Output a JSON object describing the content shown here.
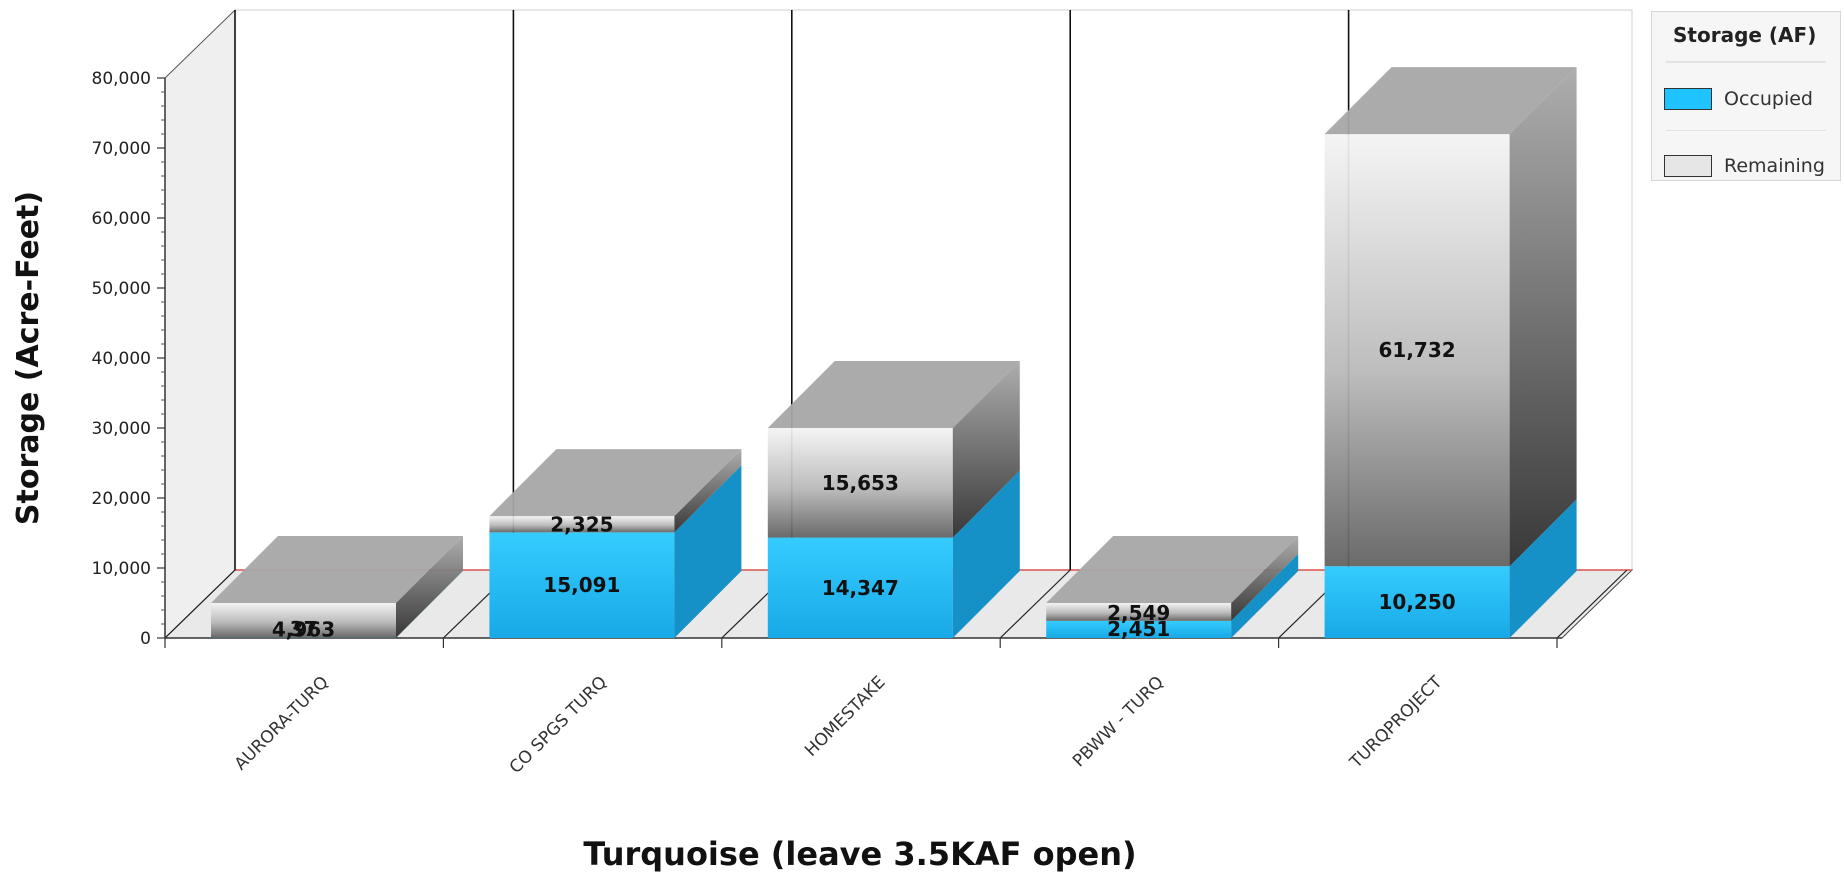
{
  "chart_data": {
    "type": "bar",
    "stacked": true,
    "three_d": true,
    "categories": [
      "AURORA-TURQ",
      "CO SPGS TURQ",
      "HOMESTAKE",
      "PBWW - TURQ",
      "TURQPROJECT"
    ],
    "series": [
      {
        "name": "Occupied",
        "values": [
          37,
          15091,
          14347,
          2451,
          10250
        ],
        "labels": [
          "37",
          "15,091",
          "14,347",
          "2,451",
          "10,250"
        ],
        "color": "#1ec3ff"
      },
      {
        "name": "Remaining",
        "values": [
          4963,
          2325,
          15653,
          2549,
          61732
        ],
        "labels": [
          "4,963",
          "2,325",
          "15,653",
          "2,549",
          "61,732"
        ],
        "color": "#e8e8e8"
      }
    ],
    "title": "",
    "xlabel": "Turquoise (leave 3.5KAF open)",
    "ylabel": "Storage (Acre-Feet)",
    "ylim": [
      0,
      80000
    ],
    "yticks": [
      0,
      10000,
      20000,
      30000,
      40000,
      50000,
      60000,
      70000,
      80000
    ],
    "ytick_labels": [
      "0",
      "10,000",
      "20,000",
      "30,000",
      "40,000",
      "50,000",
      "60,000",
      "70,000",
      "80,000"
    ],
    "grid": true,
    "legend_position": "top-right"
  },
  "legend": {
    "title": "Storage (AF)",
    "items": [
      {
        "label": "Occupied",
        "color": "#1ec3ff"
      },
      {
        "label": "Remaining",
        "color": "#e6e6e6"
      }
    ]
  }
}
